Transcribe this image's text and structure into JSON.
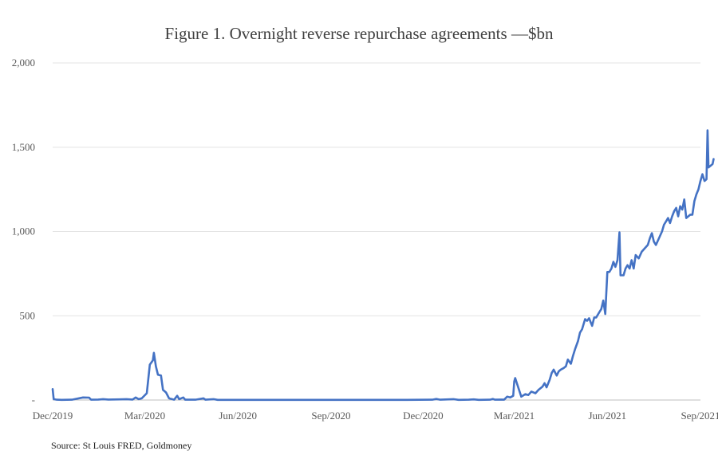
{
  "chart_data": {
    "type": "line",
    "title": "Figure 1. Overnight reverse repurchase agreements —$bn",
    "xlabel": "",
    "ylabel": "",
    "ylim": [
      0,
      2000
    ],
    "yticks": [
      0,
      500,
      1000,
      1500,
      2000
    ],
    "ytick_labels": [
      "-",
      "500",
      "1,000",
      "1,500",
      "2,000"
    ],
    "xlim": [
      "2019-12-01",
      "2021-09-01"
    ],
    "xticks": [
      "2019-12-01",
      "2020-03-01",
      "2020-06-01",
      "2020-09-01",
      "2020-12-01",
      "2021-03-01",
      "2021-06-01",
      "2021-09-01"
    ],
    "xtick_labels": [
      "Dec/2019",
      "Mar/2020",
      "Jun/2020",
      "Sep/2020",
      "Dec/2020",
      "Mar/2021",
      "Jun/2021",
      "Sep/2021"
    ],
    "grid": "horizontal",
    "color": "#4472c4",
    "series": [
      {
        "points": [
          [
            "2019-12-01",
            65
          ],
          [
            "2019-12-02",
            5
          ],
          [
            "2019-12-05",
            2
          ],
          [
            "2019-12-10",
            1
          ],
          [
            "2019-12-20",
            2
          ],
          [
            "2019-12-31",
            15
          ],
          [
            "2020-01-06",
            14
          ],
          [
            "2020-01-08",
            2
          ],
          [
            "2020-01-15",
            3
          ],
          [
            "2020-01-20",
            5
          ],
          [
            "2020-01-25",
            3
          ],
          [
            "2020-02-05",
            4
          ],
          [
            "2020-02-12",
            5
          ],
          [
            "2020-02-18",
            3
          ],
          [
            "2020-02-21",
            15
          ],
          [
            "2020-02-24",
            5
          ],
          [
            "2020-02-27",
            10
          ],
          [
            "2020-03-03",
            40
          ],
          [
            "2020-03-06",
            210
          ],
          [
            "2020-03-09",
            235
          ],
          [
            "2020-03-10",
            280
          ],
          [
            "2020-03-12",
            200
          ],
          [
            "2020-03-14",
            150
          ],
          [
            "2020-03-17",
            145
          ],
          [
            "2020-03-19",
            60
          ],
          [
            "2020-03-22",
            45
          ],
          [
            "2020-03-25",
            10
          ],
          [
            "2020-03-30",
            2
          ],
          [
            "2020-04-02",
            25
          ],
          [
            "2020-04-04",
            5
          ],
          [
            "2020-04-08",
            15
          ],
          [
            "2020-04-10",
            2
          ],
          [
            "2020-04-20",
            2
          ],
          [
            "2020-04-28",
            10
          ],
          [
            "2020-04-30",
            2
          ],
          [
            "2020-05-08",
            5
          ],
          [
            "2020-05-12",
            1
          ],
          [
            "2020-06-15",
            1
          ],
          [
            "2020-07-15",
            1
          ],
          [
            "2020-08-15",
            1
          ],
          [
            "2020-09-15",
            1
          ],
          [
            "2020-10-15",
            1
          ],
          [
            "2020-11-15",
            1
          ],
          [
            "2020-12-10",
            2
          ],
          [
            "2020-12-14",
            6
          ],
          [
            "2020-12-18",
            2
          ],
          [
            "2020-12-31",
            5
          ],
          [
            "2021-01-05",
            1
          ],
          [
            "2021-01-15",
            2
          ],
          [
            "2021-01-20",
            4
          ],
          [
            "2021-01-25",
            1
          ],
          [
            "2021-02-05",
            2
          ],
          [
            "2021-02-08",
            6
          ],
          [
            "2021-02-10",
            2
          ],
          [
            "2021-02-16",
            3
          ],
          [
            "2021-02-19",
            2
          ],
          [
            "2021-02-22",
            20
          ],
          [
            "2021-02-25",
            15
          ],
          [
            "2021-02-28",
            25
          ],
          [
            "2021-03-01",
            110
          ],
          [
            "2021-03-02",
            130
          ],
          [
            "2021-03-08",
            20
          ],
          [
            "2021-03-12",
            35
          ],
          [
            "2021-03-15",
            30
          ],
          [
            "2021-03-18",
            50
          ],
          [
            "2021-03-22",
            40
          ],
          [
            "2021-03-25",
            60
          ],
          [
            "2021-03-29",
            80
          ],
          [
            "2021-03-31",
            100
          ],
          [
            "2021-04-02",
            75
          ],
          [
            "2021-04-05",
            120
          ],
          [
            "2021-04-07",
            160
          ],
          [
            "2021-04-09",
            180
          ],
          [
            "2021-04-12",
            145
          ],
          [
            "2021-04-14",
            170
          ],
          [
            "2021-04-16",
            180
          ],
          [
            "2021-04-19",
            190
          ],
          [
            "2021-04-21",
            200
          ],
          [
            "2021-04-23",
            240
          ],
          [
            "2021-04-26",
            215
          ],
          [
            "2021-04-28",
            260
          ],
          [
            "2021-04-30",
            300
          ],
          [
            "2021-05-03",
            350
          ],
          [
            "2021-05-05",
            400
          ],
          [
            "2021-05-07",
            420
          ],
          [
            "2021-05-10",
            480
          ],
          [
            "2021-05-12",
            470
          ],
          [
            "2021-05-14",
            485
          ],
          [
            "2021-05-17",
            440
          ],
          [
            "2021-05-19",
            490
          ],
          [
            "2021-05-21",
            490
          ],
          [
            "2021-05-24",
            520
          ],
          [
            "2021-05-26",
            540
          ],
          [
            "2021-05-28",
            590
          ],
          [
            "2021-05-30",
            510
          ],
          [
            "2021-06-01",
            760
          ],
          [
            "2021-06-03",
            760
          ],
          [
            "2021-06-05",
            780
          ],
          [
            "2021-06-07",
            820
          ],
          [
            "2021-06-09",
            790
          ],
          [
            "2021-06-11",
            830
          ],
          [
            "2021-06-13",
            995
          ],
          [
            "2021-06-14",
            740
          ],
          [
            "2021-06-17",
            740
          ],
          [
            "2021-06-19",
            780
          ],
          [
            "2021-06-21",
            800
          ],
          [
            "2021-06-23",
            780
          ],
          [
            "2021-06-25",
            830
          ],
          [
            "2021-06-27",
            780
          ],
          [
            "2021-06-29",
            860
          ],
          [
            "2021-07-02",
            840
          ],
          [
            "2021-07-05",
            880
          ],
          [
            "2021-07-08",
            900
          ],
          [
            "2021-07-11",
            920
          ],
          [
            "2021-07-13",
            960
          ],
          [
            "2021-07-15",
            990
          ],
          [
            "2021-07-17",
            940
          ],
          [
            "2021-07-19",
            920
          ],
          [
            "2021-07-22",
            960
          ],
          [
            "2021-07-25",
            1000
          ],
          [
            "2021-07-27",
            1040
          ],
          [
            "2021-07-29",
            1060
          ],
          [
            "2021-07-31",
            1080
          ],
          [
            "2021-08-02",
            1050
          ],
          [
            "2021-08-04",
            1090
          ],
          [
            "2021-08-06",
            1120
          ],
          [
            "2021-08-08",
            1140
          ],
          [
            "2021-08-10",
            1090
          ],
          [
            "2021-08-12",
            1150
          ],
          [
            "2021-08-14",
            1130
          ],
          [
            "2021-08-16",
            1190
          ],
          [
            "2021-08-18",
            1080
          ],
          [
            "2021-08-20",
            1090
          ],
          [
            "2021-08-22",
            1100
          ],
          [
            "2021-08-24",
            1100
          ],
          [
            "2021-08-26",
            1180
          ],
          [
            "2021-08-28",
            1220
          ],
          [
            "2021-08-30",
            1250
          ],
          [
            "2021-09-01",
            1300
          ],
          [
            "2021-09-03",
            1340
          ],
          [
            "2021-09-05",
            1300
          ],
          [
            "2021-09-07",
            1310
          ],
          [
            "2021-09-08",
            1600
          ],
          [
            "2021-09-09",
            1380
          ],
          [
            "2021-09-11",
            1390
          ],
          [
            "2021-09-13",
            1400
          ],
          [
            "2021-09-14",
            1430
          ]
        ]
      }
    ]
  },
  "source": "Source: St Louis FRED, Goldmoney"
}
